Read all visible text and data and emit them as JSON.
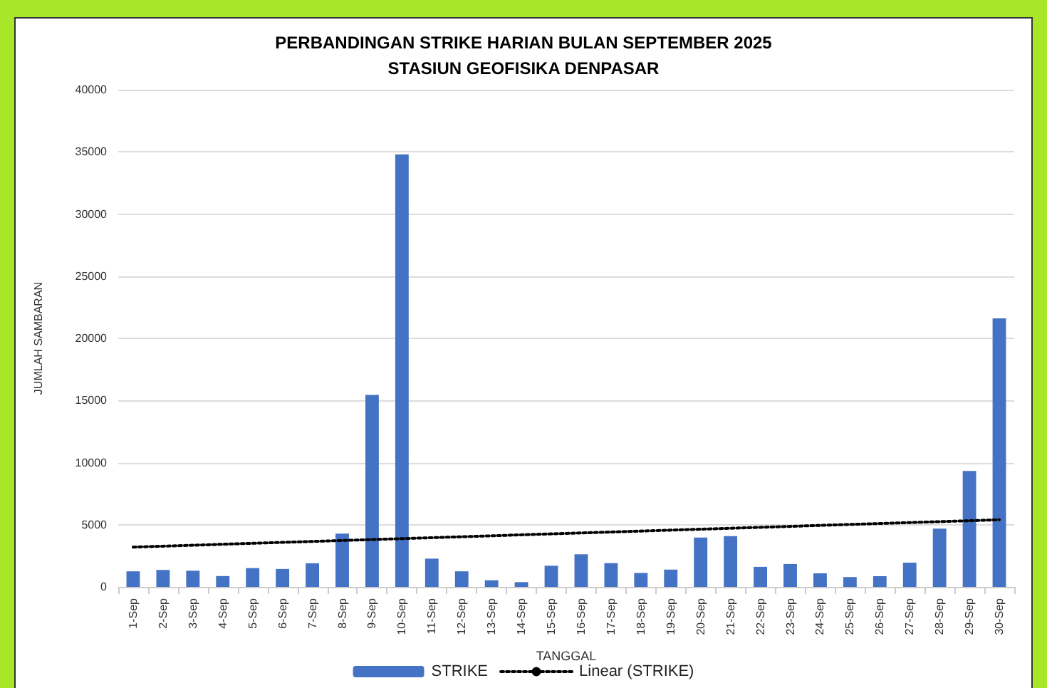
{
  "chart_data": {
    "type": "bar",
    "title": "PERBANDINGAN STRIKE HARIAN BULAN SEPTEMBER 2025",
    "subtitle": "STASIUN GEOFISIKA DENPASAR",
    "xlabel": "TANGGAL",
    "ylabel": "JUMLAH SAMBARAN",
    "categories": [
      "1-Sep",
      "2-Sep",
      "3-Sep",
      "4-Sep",
      "5-Sep",
      "6-Sep",
      "7-Sep",
      "8-Sep",
      "9-Sep",
      "10-Sep",
      "11-Sep",
      "12-Sep",
      "13-Sep",
      "14-Sep",
      "15-Sep",
      "16-Sep",
      "17-Sep",
      "18-Sep",
      "19-Sep",
      "20-Sep",
      "21-Sep",
      "22-Sep",
      "23-Sep",
      "24-Sep",
      "25-Sep",
      "26-Sep",
      "27-Sep",
      "28-Sep",
      "29-Sep",
      "30-Sep"
    ],
    "series": [
      {
        "name": "STRIKE",
        "color": "#4472c4",
        "values": [
          1250,
          1360,
          1300,
          870,
          1510,
          1440,
          1900,
          4280,
          15450,
          34800,
          2270,
          1250,
          530,
          380,
          1700,
          2620,
          1910,
          1120,
          1390,
          3970,
          4080,
          1610,
          1840,
          1090,
          790,
          860,
          1950,
          4680,
          9330,
          21600
        ]
      },
      {
        "name": "Linear (STRIKE)",
        "type": "line",
        "color": "#000000",
        "line_style": "dotted",
        "marker": "none",
        "x": [
          "1-Sep",
          "30-Sep"
        ],
        "values": [
          3200,
          5400
        ]
      }
    ],
    "ylim": [
      0,
      40000
    ],
    "yticks": [
      0,
      5000,
      10000,
      15000,
      20000,
      25000,
      30000,
      35000,
      40000
    ],
    "grid": "y",
    "legend": "bottom"
  }
}
